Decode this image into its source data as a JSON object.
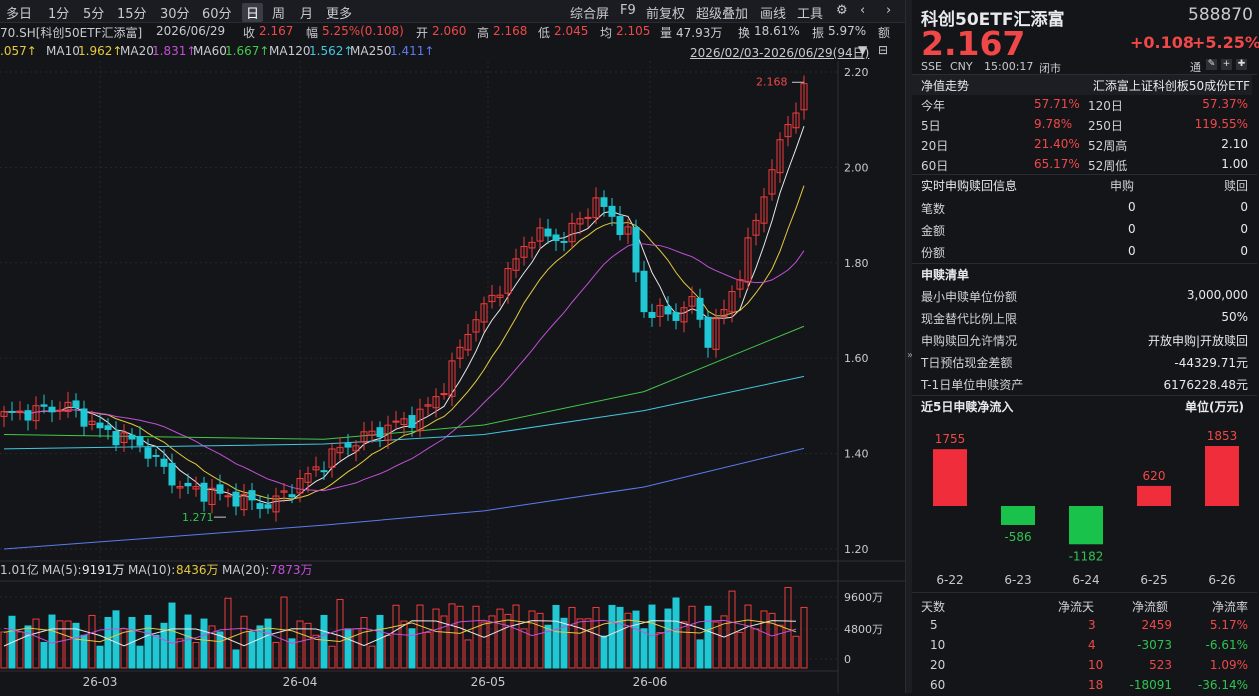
{
  "toolbar": {
    "periods": [
      "多日",
      "1分",
      "5分",
      "15分",
      "30分",
      "60分",
      "日",
      "周",
      "月",
      "更多"
    ],
    "active": "日",
    "tools": [
      "综合屏",
      "F9",
      "前复权",
      "超级叠加",
      "画线",
      "工具"
    ]
  },
  "info": {
    "code": "70.SH[科创50ETF汇添富]",
    "date": "2026/06/29",
    "close_label": "收",
    "close": "2.167",
    "chg_label": "幅",
    "chg": "5.25%(0.108)",
    "open_label": "开",
    "open": "2.060",
    "high_label": "高",
    "high": "2.168",
    "low_label": "低",
    "low": "2.045",
    "avg_label": "均",
    "avg": "2.105",
    "amount_label": "量",
    "amount": "47.93万",
    "turn_label": "换",
    "turn": "18.61%",
    "amp_label": "振",
    "amp": "5.97%",
    "trail": "额"
  },
  "ma_bar": {
    "ma5": ".057↑",
    "ma10_label": "MA10",
    "ma10": "1.962↑",
    "ma20_label": "MA20",
    "ma20": "1.831↑",
    "ma60_label": "MA60",
    "ma60": "1.667↑",
    "ma120_label": "MA120",
    "ma120": "1.562↑",
    "ma250_label": "MA250",
    "ma250": "1.411↑",
    "range": "2026/02/03-2026/06/29(94日)"
  },
  "vol_bar": {
    "total": "1.01亿",
    "ma5_label": "MA(5):",
    "ma5": "9191万",
    "ma10_label": "MA(10):",
    "ma10": "8436万",
    "ma20_label": "MA(20):",
    "ma20": "7873万"
  },
  "chart_data": {
    "type": "candlestick",
    "price_ticks": [
      "2.20",
      "2.00",
      "1.80",
      "1.60",
      "1.40",
      "1.20"
    ],
    "volume_ticks": [
      "9600万",
      "4800万",
      "0"
    ],
    "x_labels": [
      "26-03",
      "26-04",
      "26-05",
      "26-06"
    ],
    "high_annotation": "2.168",
    "low_annotation": "1.271",
    "colors": {
      "up": "#f03c3c",
      "down": "#1fc8d4",
      "ma5": "#e8e8e8",
      "ma10": "#e6c93e",
      "ma20": "#c44fd8",
      "ma60": "#43c84a",
      "ma120": "#42c8e0",
      "ma250": "#5a7cf0"
    }
  },
  "panel": {
    "title": "科创50ETF汇添富",
    "code": "588870",
    "price": "2.167",
    "change": "+0.108",
    "change_pct": "+5.25%",
    "sub": [
      "SSE",
      "CNY",
      "15:00:17",
      "闭市"
    ],
    "tong": "通",
    "nav_title": "净值走势",
    "nav_name": "汇添富上证科创板50成份ETF",
    "perf": [
      {
        "l1": "今年",
        "v1": "57.71%",
        "l2": "120日",
        "v2": "57.37%"
      },
      {
        "l1": "5日",
        "v1": "9.78%",
        "l2": "250日",
        "v2": "119.55%"
      },
      {
        "l1": "20日",
        "v1": "21.40%",
        "l2": "52周高",
        "v2": "2.10"
      },
      {
        "l1": "60日",
        "v1": "65.17%",
        "l2": "52周低",
        "v2": "1.00"
      }
    ],
    "rt_title": "实时申购赎回信息",
    "rt_h1": "申购",
    "rt_h2": "赎回",
    "rt_rows": [
      {
        "l": "笔数",
        "a": "0",
        "b": "0"
      },
      {
        "l": "金额",
        "a": "0",
        "b": "0"
      },
      {
        "l": "份额",
        "a": "0",
        "b": "0"
      }
    ],
    "list_title": "申赎清单",
    "list_rows": [
      {
        "l": "最小申赎单位份额",
        "v": "3,000,000"
      },
      {
        "l": "现金替代比例上限",
        "v": "50%"
      },
      {
        "l": "申购赎回允许情况",
        "v": "开放申购|开放赎回"
      },
      {
        "l": "T日预估现金差额",
        "v": "-44329.71元"
      },
      {
        "l": "T-1日单位申赎资产",
        "v": "6176228.48元"
      }
    ],
    "flow_title": "近5日申赎净流入",
    "flow_unit": "单位(万元)",
    "flow_bars": [
      {
        "date": "6-22",
        "value": 1755
      },
      {
        "date": "6-23",
        "value": -586
      },
      {
        "date": "6-24",
        "value": -1182
      },
      {
        "date": "6-25",
        "value": 620
      },
      {
        "date": "6-26",
        "value": 1853
      }
    ],
    "stat_headers": [
      "天数",
      "净流天",
      "净流额",
      "净流率"
    ],
    "stat_rows": [
      {
        "d": "5",
        "n": "3",
        "amt": "2459",
        "rate": "5.17%"
      },
      {
        "d": "10",
        "n": "4",
        "amt": "-3073",
        "rate": "-6.61%"
      },
      {
        "d": "20",
        "n": "10",
        "amt": "523",
        "rate": "1.09%"
      },
      {
        "d": "60",
        "n": "18",
        "amt": "-18091",
        "rate": "-36.14%"
      }
    ]
  }
}
